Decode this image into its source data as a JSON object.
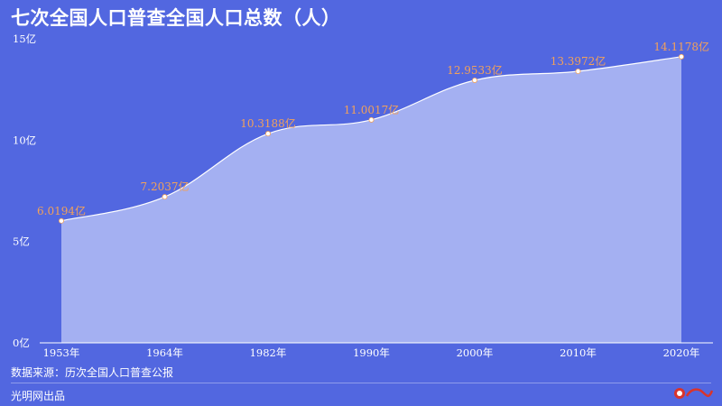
{
  "title": "七次全国人口普查全国人口总数（人）",
  "source": "数据来源：历次全国人口普查公报",
  "publisher": "光明网出品",
  "colors": {
    "background": "#5267E0",
    "area_fill": "#A4B0F2",
    "line": "#ffffff",
    "label": "#F2A15A",
    "text": "#ffffff"
  },
  "chart_data": {
    "type": "area",
    "title": "七次全国人口普查全国人口总数（人）",
    "categories": [
      "1953年",
      "1964年",
      "1982年",
      "1990年",
      "2000年",
      "2010年",
      "2020年"
    ],
    "values": [
      6.0194,
      7.2037,
      10.3188,
      11.0017,
      12.9533,
      13.3972,
      14.1178
    ],
    "data_labels": [
      "6.0194亿",
      "7.2037亿",
      "10.3188亿",
      "11.0017亿",
      "12.9533亿",
      "13.3972亿",
      "14.1178亿"
    ],
    "y_ticks": [
      "0亿",
      "5亿",
      "10亿",
      "15亿"
    ],
    "ylim": [
      0,
      15
    ],
    "grid": false,
    "legend": "none"
  }
}
